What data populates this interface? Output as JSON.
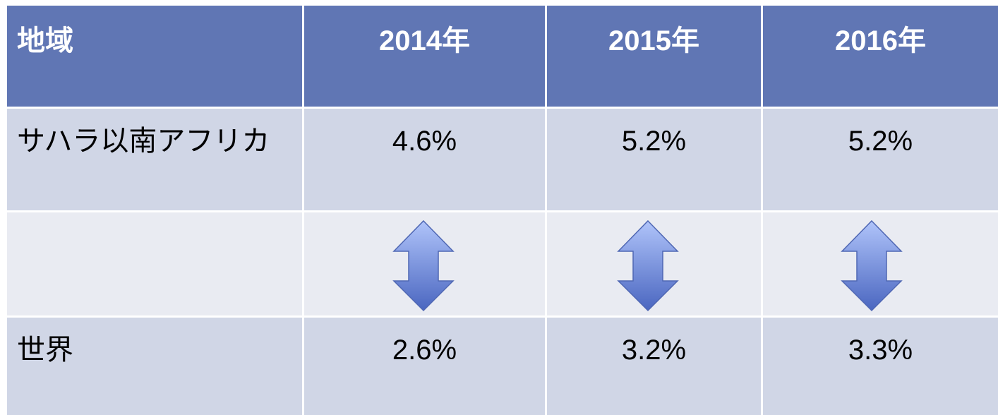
{
  "table": {
    "header": [
      "地域",
      "2014年",
      "2015年",
      "2016年"
    ],
    "rows": [
      [
        "サハラ以南アフリカ",
        "4.6%",
        "5.2%",
        "5.2%"
      ],
      [
        "世界",
        "2.6%",
        "3.2%",
        "3.3%"
      ]
    ]
  }
}
